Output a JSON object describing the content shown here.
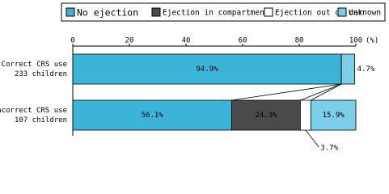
{
  "chart_data": {
    "type": "stacked-barh",
    "categories": [
      [
        "Correct CRS use",
        "233 children"
      ],
      [
        "Incorrect CRS use",
        "107 children"
      ]
    ],
    "series": [
      {
        "name": "No ejection",
        "color": "#3cb4d9",
        "values": [
          94.9,
          56.1
        ],
        "value_labels": [
          "94.9%",
          "56.1%"
        ]
      },
      {
        "name": "Ejection in compartment",
        "color": "#4a4a4a",
        "values": [
          null,
          24.3
        ],
        "value_labels": [
          null,
          "24.3%"
        ]
      },
      {
        "name": "Ejection out of car",
        "color": "#ffffff",
        "values": [
          null,
          3.7
        ],
        "value_labels": [
          null,
          "3.7%"
        ]
      },
      {
        "name": "Unknown",
        "color": "#7ccfe9",
        "values": [
          4.7,
          15.9
        ],
        "value_labels": [
          "4.7%",
          "15.9%"
        ]
      }
    ],
    "xlim": [
      0,
      100
    ],
    "xticks": [
      0,
      20,
      40,
      60,
      80,
      100
    ],
    "x_unit": "(%)"
  }
}
